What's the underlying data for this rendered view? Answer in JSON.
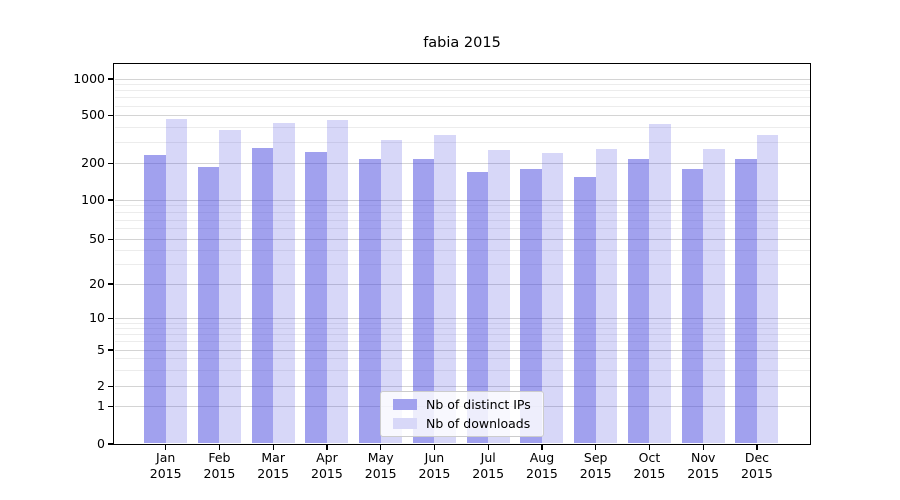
{
  "title": "fabia 2015",
  "chart_data": {
    "type": "bar",
    "title": "fabia 2015",
    "yscale": "symlog",
    "ylim": [
      0,
      1300
    ],
    "grid": "on",
    "legend_position": "bottom-center",
    "x": [
      "Jan 2015",
      "Feb 2015",
      "Mar 2015",
      "Apr 2015",
      "May 2015",
      "Jun 2015",
      "Jul 2015",
      "Aug 2015",
      "Sep 2015",
      "Oct 2015",
      "Nov 2015",
      "Dec 2015"
    ],
    "x_line1": [
      "Jan",
      "Feb",
      "Mar",
      "Apr",
      "May",
      "Jun",
      "Jul",
      "Aug",
      "Sep",
      "Oct",
      "Nov",
      "Dec"
    ],
    "x_line2": "2015",
    "y_ticks": [
      0,
      1,
      2,
      5,
      10,
      20,
      50,
      100,
      200,
      500,
      1000
    ],
    "y_minor_gridlines": [
      3,
      4,
      6,
      7,
      8,
      9,
      30,
      40,
      60,
      70,
      80,
      90,
      300,
      400,
      600,
      700,
      800,
      900
    ],
    "series": [
      {
        "name": "Nb of distinct IPs",
        "color_fill": "rgba(68,68,221,0.5)",
        "color_flat": "#a1a1ee",
        "values": [
          235,
          185,
          268,
          251,
          217,
          219,
          171,
          179,
          154,
          218,
          180,
          217
        ]
      },
      {
        "name": "Nb of downloads",
        "color_fill": "rgba(68,68,221,0.21)",
        "color_flat": "#d8d8f8",
        "values": [
          465,
          378,
          432,
          464,
          313,
          344,
          256,
          243,
          262,
          427,
          261,
          346
        ]
      }
    ]
  },
  "colors": {
    "grid_major": "#d4d4d4",
    "grid_minor": "#ececec",
    "axis": "#000000",
    "text": "#000000",
    "legend_border": "#cccccc",
    "background": "#ffffff"
  }
}
